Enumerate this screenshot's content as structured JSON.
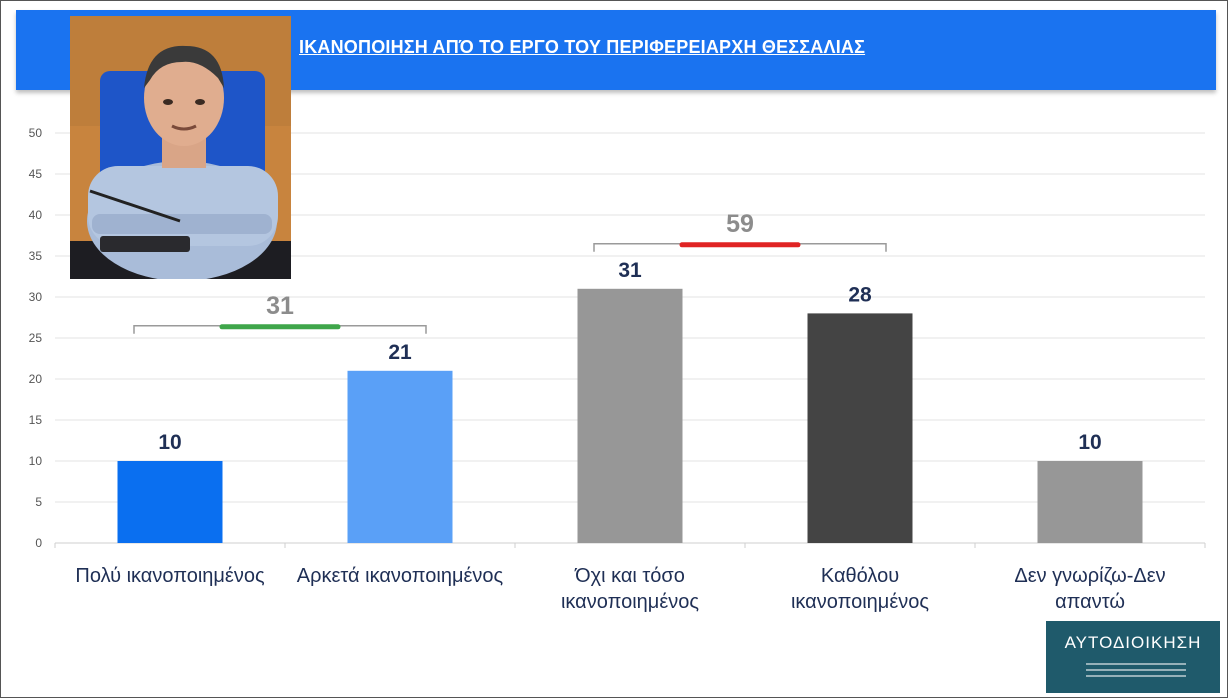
{
  "header": {
    "title": "ΙΚΑΝΟΠΟΙΗΣΗ ΑΠΌ ΤΟ ΕΡΓΟ ΤΟΥ ΠΕΡΙΦΕΡΕΙΑΡΧΗ ΘΕΣΣΑΛΙΑΣ"
  },
  "logo": {
    "text": "ΑΥΤΟΔΙΟΙΚΗΣΗ"
  },
  "colors": {
    "header_bg": "#1a73f0",
    "very_satisfied": "#0a6ff0",
    "fairly_satisfied": "#5aa0f7",
    "not_so_satisfied": "#979797",
    "not_at_all": "#444444",
    "dont_know": "#979797",
    "satisfied_group": "#3fa64a",
    "dissatisfied_group": "#e02424",
    "value_label": "#1f2f55"
  },
  "chart_data": {
    "type": "bar",
    "categories": [
      [
        "Πολύ ικανοποιημένος"
      ],
      [
        "Αρκετά ικανοποιημένος"
      ],
      [
        "Όχι και τόσο",
        "ικανοποιημένος"
      ],
      [
        "Καθόλου",
        "ικανοποιημένος"
      ],
      [
        "Δεν γνωρίζω-Δεν",
        "απαντώ"
      ]
    ],
    "values": [
      10,
      21,
      31,
      28,
      10
    ],
    "ylim": [
      0,
      50
    ],
    "yticks": [
      0,
      5,
      10,
      15,
      20,
      25,
      30,
      35,
      40,
      45,
      50
    ],
    "grid": true,
    "groups": [
      {
        "label": "31",
        "from": 0,
        "to": 1,
        "color_key": "satisfied_group"
      },
      {
        "label": "59",
        "from": 2,
        "to": 3,
        "color_key": "dissatisfied_group"
      }
    ]
  }
}
